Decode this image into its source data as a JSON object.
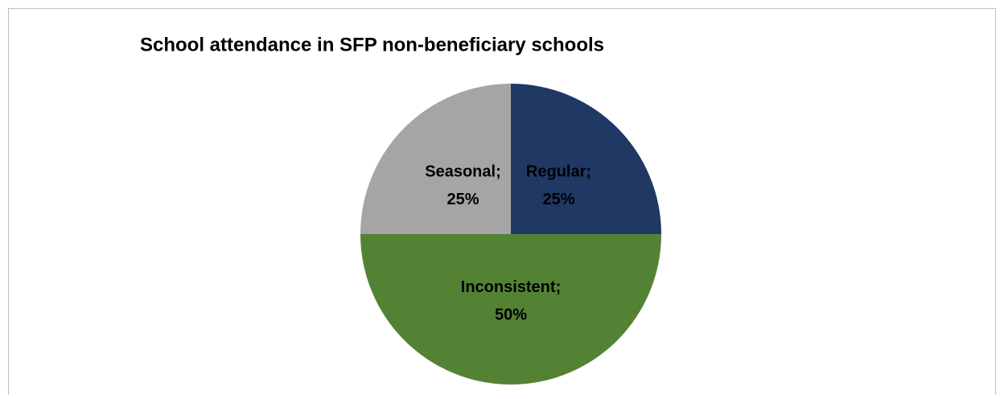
{
  "chart_data": {
    "type": "pie",
    "title": "School attendance in SFP non-beneficiary schools",
    "categories": [
      "Regular",
      "Inconsistent",
      "Seasonal"
    ],
    "values": [
      25,
      50,
      25
    ],
    "value_labels": [
      "25%",
      "50%",
      "25%"
    ],
    "label_separator": ";",
    "colors": [
      "#1f3864",
      "#548235",
      "#a5a5a5"
    ]
  }
}
